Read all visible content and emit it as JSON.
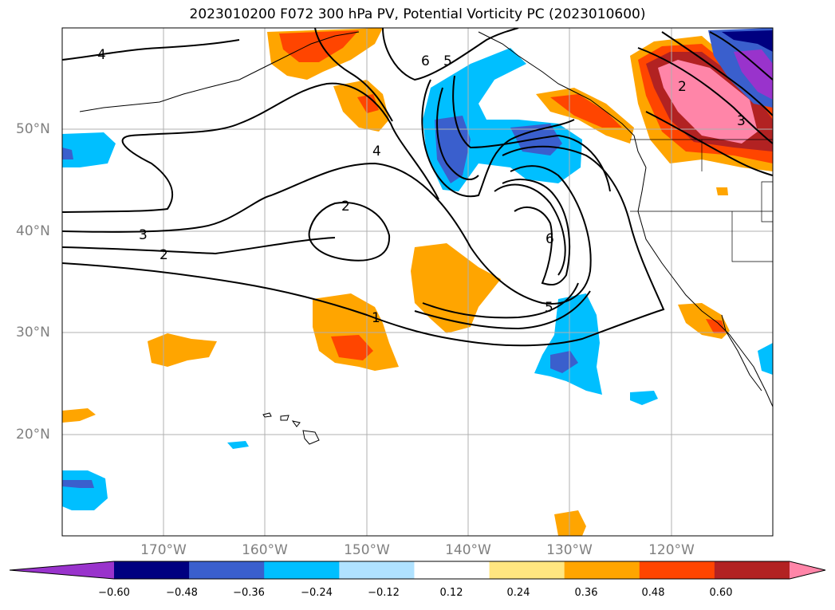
{
  "title": "2023010200 F072 300 hPa PV, Potential Vorticity PC (2023010600)",
  "latitude_labels": [
    "50°N",
    "40°N",
    "30°N",
    "20°N"
  ],
  "longitude_labels": [
    "170°W",
    "160°W",
    "150°W",
    "140°W",
    "130°W",
    "120°W"
  ],
  "colorbar": {
    "ticks": [
      "−0.60",
      "−0.48",
      "−0.36",
      "−0.24",
      "−0.12",
      "0.12",
      "0.24",
      "0.36",
      "0.48",
      "0.60"
    ],
    "colors": [
      "#9933cc",
      "#000080",
      "#3a5fcd",
      "#00bfff",
      "#b0e2ff",
      "#ffffff",
      "#ffe680",
      "#ffa500",
      "#ff4500",
      "#b22222",
      "#ff85a8"
    ]
  },
  "contour_labels": [
    "4",
    "6",
    "5",
    "4",
    "2",
    "3",
    "2",
    "6",
    "5",
    "1",
    "2",
    "3"
  ]
}
